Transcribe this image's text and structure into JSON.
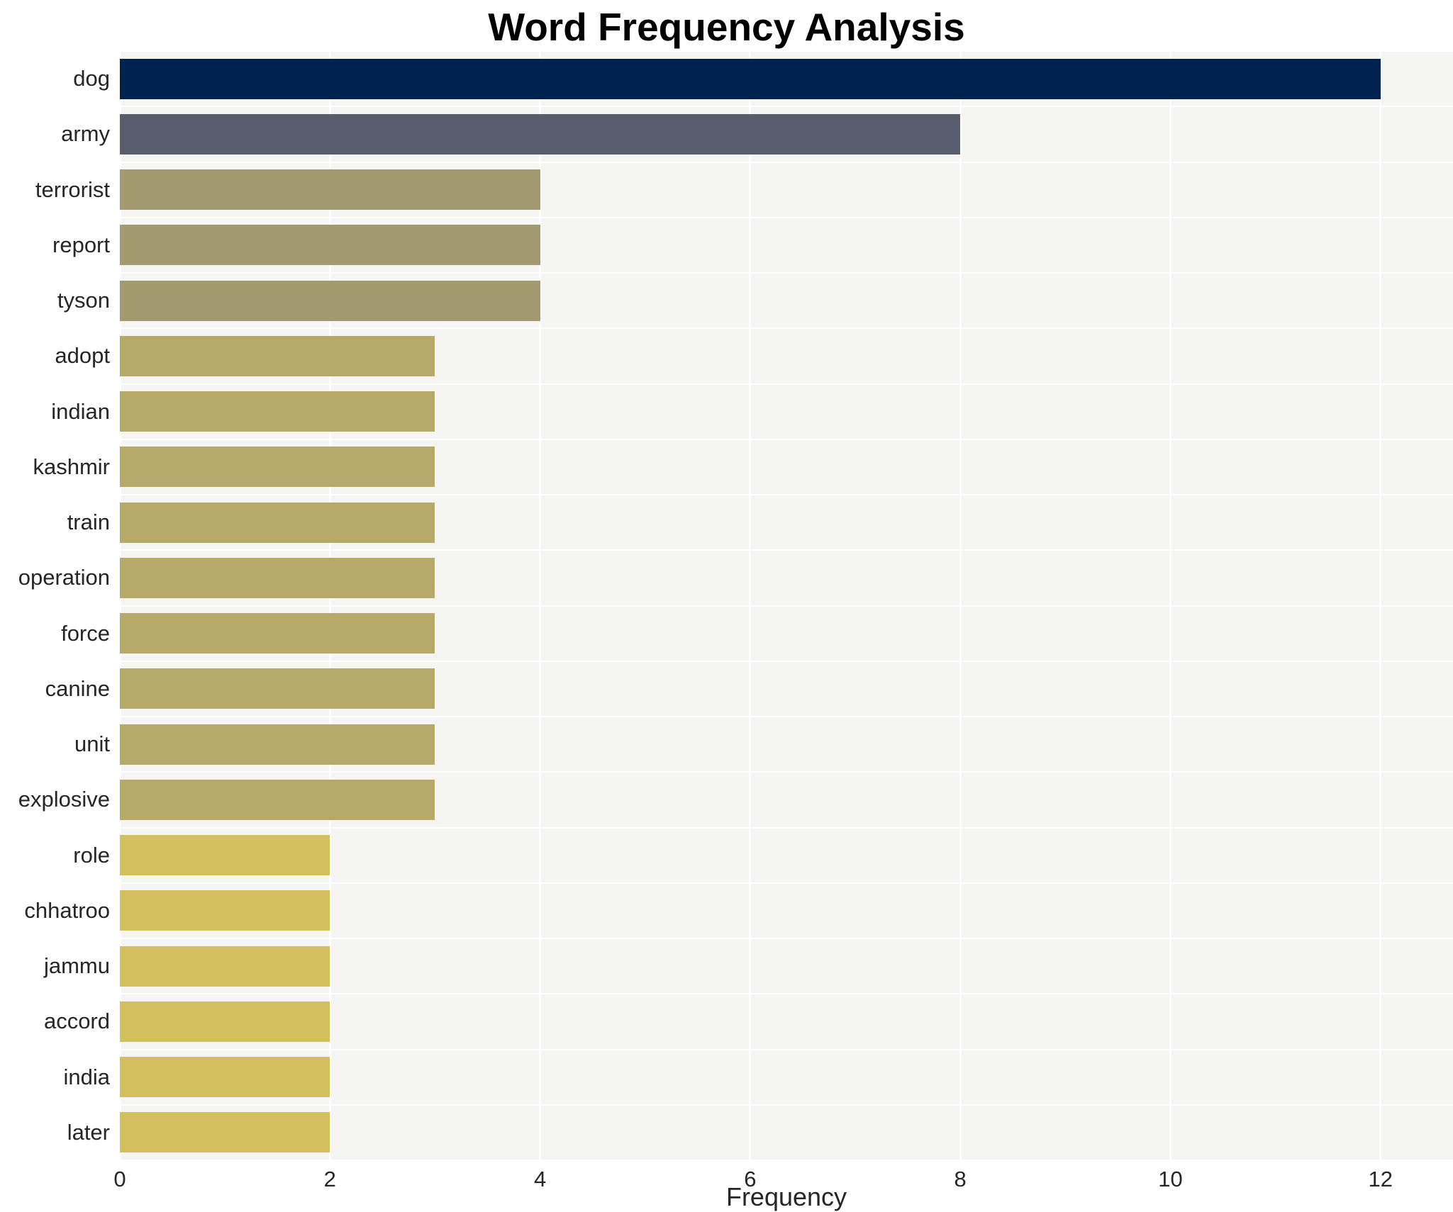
{
  "chart_data": {
    "type": "bar",
    "orientation": "horizontal",
    "title": "Word Frequency Analysis",
    "xlabel": "Frequency",
    "ylabel": "",
    "categories": [
      "dog",
      "army",
      "terrorist",
      "report",
      "tyson",
      "adopt",
      "indian",
      "kashmir",
      "train",
      "operation",
      "force",
      "canine",
      "unit",
      "explosive",
      "role",
      "chhatroo",
      "jammu",
      "accord",
      "india",
      "later"
    ],
    "values": [
      12,
      8,
      4,
      4,
      4,
      3,
      3,
      3,
      3,
      3,
      3,
      3,
      3,
      3,
      2,
      2,
      2,
      2,
      2,
      2
    ],
    "bar_colors": [
      "#00224e",
      "#575d6d",
      "#a49a72",
      "#a49a72",
      "#a49a72",
      "#b7aa69",
      "#b7aa69",
      "#b7aa69",
      "#b7aa69",
      "#b7aa69",
      "#b7aa69",
      "#b7aa69",
      "#b7aa69",
      "#b7aa69",
      "#d3c05d",
      "#d3c05d",
      "#d3c05d",
      "#d3c05d",
      "#d3c05d",
      "#d3c05d"
    ],
    "axis": {
      "max": 12.69,
      "ticks": [
        0,
        2,
        4,
        6,
        8,
        10,
        12
      ]
    },
    "xlim": [
      0,
      12.69
    ],
    "grid": true,
    "legend": "none",
    "plot_bg": "#f5f5f4",
    "grid_color": "#ffffff"
  }
}
